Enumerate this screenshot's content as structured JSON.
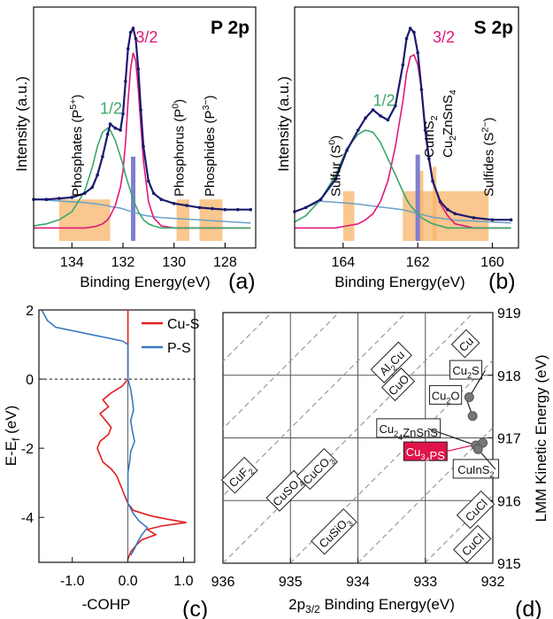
{
  "chart_data": [
    {
      "panel": "(a)",
      "type": "line",
      "title": "P 2p",
      "xlabel": "Binding Energy(eV)",
      "ylabel": "Intensity (a.u.)",
      "xlim": [
        135.5,
        126.8
      ],
      "x_ticks": [
        134,
        132,
        130,
        128
      ],
      "peak_labels": [
        {
          "text": "3/2",
          "x": 131.5,
          "y": 0.93,
          "color": "#e0197a"
        },
        {
          "text": "1/2",
          "x": 132.9,
          "y": 0.58,
          "color": "#3aa86b"
        }
      ],
      "region_labels": [
        {
          "text": "Phosphates (P",
          "sup": "5+",
          "tail": ")",
          "x": 133.8
        },
        {
          "text": "Phosphorus (P",
          "sup": "0",
          "tail": ")",
          "x": 129.8
        },
        {
          "text": "Phosphides (P",
          "sup": "3−",
          "tail": ")",
          "x": 128.6
        }
      ],
      "bands": [
        {
          "x0": 134.5,
          "x1": 132.5,
          "h": 0.16
        },
        {
          "x0": 129.9,
          "x1": 129.4,
          "h": 0.16
        },
        {
          "x0": 129.0,
          "x1": 128.1,
          "h": 0.16
        }
      ],
      "reference_line": {
        "x": 131.6,
        "h": 0.37
      },
      "series": [
        {
          "role": "data",
          "color": "#1a1a6e",
          "style": "line+markers"
        },
        {
          "role": "fit",
          "color": "#e0197a"
        },
        {
          "role": "fit",
          "color": "#3aa86b"
        },
        {
          "role": "background",
          "color": "#6aa0c8"
        }
      ],
      "x": [
        135.5,
        135.0,
        134.5,
        134.0,
        133.5,
        133.2,
        133.0,
        132.8,
        132.6,
        132.5,
        132.3,
        132.1,
        132.0,
        131.9,
        131.8,
        131.7,
        131.6,
        131.5,
        131.4,
        131.3,
        131.2,
        131.0,
        130.8,
        130.5,
        130.0,
        129.5,
        129.0,
        128.5,
        128.0,
        127.5,
        127.0
      ],
      "data_y": [
        0.16,
        0.16,
        0.165,
        0.17,
        0.19,
        0.22,
        0.28,
        0.37,
        0.48,
        0.53,
        0.51,
        0.5,
        0.58,
        0.74,
        0.9,
        0.98,
        1.0,
        0.95,
        0.8,
        0.6,
        0.42,
        0.25,
        0.19,
        0.16,
        0.14,
        0.13,
        0.12,
        0.115,
        0.11,
        0.11,
        0.11
      ],
      "fit_32": [
        0.0,
        0.0,
        0.0,
        0.0,
        0.0,
        0.005,
        0.01,
        0.02,
        0.04,
        0.06,
        0.11,
        0.2,
        0.28,
        0.42,
        0.62,
        0.78,
        0.86,
        0.82,
        0.68,
        0.5,
        0.33,
        0.13,
        0.05,
        0.01,
        0.0,
        0.0,
        0.0,
        0.0,
        0.0,
        0.0,
        0.0
      ],
      "fit_12": [
        0.01,
        0.02,
        0.04,
        0.08,
        0.18,
        0.3,
        0.4,
        0.47,
        0.49,
        0.48,
        0.43,
        0.35,
        0.31,
        0.26,
        0.22,
        0.18,
        0.14,
        0.11,
        0.08,
        0.06,
        0.04,
        0.02,
        0.01,
        0.0,
        0.0,
        0.0,
        0.0,
        0.0,
        0.0,
        0.0,
        0.0
      ]
    },
    {
      "panel": "(b)",
      "type": "line",
      "title": "S 2p",
      "xlabel": "Binding Energy(eV)",
      "ylabel": "Intensity (a.u.)",
      "xlim": [
        165.3,
        159.3
      ],
      "x_ticks": [
        164,
        162,
        160
      ],
      "peak_labels": [
        {
          "text": "3/2",
          "x": 161.6,
          "y": 0.93,
          "color": "#e0197a"
        },
        {
          "text": "1/2",
          "x": 163.2,
          "y": 0.62,
          "color": "#3aa86b"
        }
      ],
      "region_labels": [
        {
          "text": "Sulfur (S",
          "sup": "0",
          "tail": ")",
          "x": 164.2
        },
        {
          "text": "CuInS",
          "sub": "2",
          "tail": "",
          "x": 161.7
        },
        {
          "text": "Cu",
          "sub": "2",
          "mid": "ZnSnS",
          "sub2": "4",
          "tail": "",
          "x": 161.2
        },
        {
          "text": "Sulfides (S",
          "sup": "2−",
          "tail": ")",
          "x": 160.1
        }
      ],
      "bands": [
        {
          "x0": 164.0,
          "x1": 163.7,
          "h": 0.2
        },
        {
          "x0": 162.4,
          "x1": 160.1,
          "h": 0.2
        },
        {
          "x0": 161.95,
          "x1": 161.85,
          "h": 0.3
        },
        {
          "x0": 161.6,
          "x1": 161.5,
          "h": 0.32
        }
      ],
      "reference_line": {
        "x": 162.0,
        "h": 0.38
      },
      "series": [
        {
          "role": "data",
          "color": "#1a1a6e",
          "style": "line+markers"
        },
        {
          "role": "fit",
          "color": "#e0197a"
        },
        {
          "role": "fit",
          "color": "#3aa86b"
        },
        {
          "role": "background",
          "color": "#6aa0c8"
        }
      ],
      "x": [
        165.3,
        165.0,
        164.6,
        164.2,
        163.9,
        163.6,
        163.4,
        163.2,
        163.0,
        162.8,
        162.6,
        162.4,
        162.3,
        162.2,
        162.1,
        162.0,
        161.9,
        161.8,
        161.7,
        161.6,
        161.4,
        161.2,
        161.0,
        160.5,
        160.0,
        159.5
      ],
      "data_y": [
        0.1,
        0.12,
        0.16,
        0.26,
        0.4,
        0.5,
        0.56,
        0.6,
        0.57,
        0.55,
        0.62,
        0.82,
        0.95,
        1.0,
        0.98,
        0.88,
        0.7,
        0.5,
        0.36,
        0.25,
        0.15,
        0.11,
        0.09,
        0.07,
        0.06,
        0.06
      ],
      "fit_32": [
        0.0,
        0.0,
        0.0,
        0.0,
        0.01,
        0.02,
        0.04,
        0.07,
        0.13,
        0.23,
        0.4,
        0.62,
        0.76,
        0.84,
        0.85,
        0.8,
        0.68,
        0.5,
        0.35,
        0.24,
        0.12,
        0.06,
        0.02,
        0.0,
        0.0,
        0.0
      ],
      "fit_12": [
        0.03,
        0.06,
        0.14,
        0.26,
        0.39,
        0.46,
        0.48,
        0.47,
        0.42,
        0.34,
        0.26,
        0.18,
        0.14,
        0.11,
        0.09,
        0.07,
        0.05,
        0.04,
        0.03,
        0.02,
        0.01,
        0.0,
        0.0,
        0.0,
        0.0,
        0.0
      ]
    },
    {
      "panel": "(c)",
      "type": "line",
      "xlabel": "-COHP",
      "ylabel": "E-E",
      "ylabel_sub": "f",
      "ylabel_tail": " (eV)",
      "xlim": [
        -1.6,
        1.2
      ],
      "ylim": [
        -5.3,
        2.0
      ],
      "x_ticks": [
        -1.0,
        0.0,
        1.0
      ],
      "x_tick_labels": [
        "-1.0",
        "0.0",
        "1.0"
      ],
      "y_ticks": [
        2,
        0,
        -2,
        -4
      ],
      "fermi_level": 0,
      "series": [
        {
          "name": "Cu-S",
          "color": "#e02020",
          "y": [
            2.0,
            1.5,
            1.0,
            0.5,
            0.2,
            0.0,
            -0.2,
            -0.4,
            -0.6,
            -0.8,
            -1.0,
            -1.2,
            -1.4,
            -1.6,
            -1.8,
            -2.0,
            -2.2,
            -2.4,
            -2.6,
            -2.8,
            -3.0,
            -3.2,
            -3.4,
            -3.6,
            -3.8,
            -3.95,
            -4.05,
            -4.15,
            -4.25,
            -4.35,
            -4.5,
            -4.65,
            -4.8,
            -5.0,
            -5.2
          ],
          "x": [
            0.0,
            0.0,
            0.0,
            0.0,
            0.0,
            0.0,
            -0.1,
            -0.3,
            -0.45,
            -0.35,
            -0.5,
            -0.4,
            -0.3,
            -0.35,
            -0.5,
            -0.55,
            -0.5,
            -0.45,
            -0.3,
            -0.2,
            -0.15,
            -0.1,
            -0.05,
            0.0,
            0.1,
            0.4,
            0.7,
            1.05,
            0.6,
            0.35,
            0.5,
            0.25,
            0.15,
            0.05,
            0.0
          ]
        },
        {
          "name": "P-S",
          "color": "#3a78c0",
          "y": [
            2.0,
            1.85,
            1.7,
            1.5,
            1.3,
            1.1,
            1.0,
            0.8,
            0.5,
            0.2,
            0.0,
            -0.3,
            -0.6,
            -0.9,
            -1.2,
            -1.5,
            -1.8,
            -2.1,
            -2.4,
            -2.7,
            -3.0,
            -3.3,
            -3.6,
            -3.9,
            -4.1,
            -4.3,
            -4.5,
            -4.7,
            -4.9,
            -5.1
          ],
          "x": [
            -1.55,
            -1.5,
            -1.45,
            -1.3,
            -0.7,
            -0.1,
            0.0,
            0.0,
            0.0,
            0.0,
            0.0,
            0.05,
            0.08,
            0.1,
            0.05,
            0.08,
            0.12,
            0.05,
            0.03,
            0.0,
            0.0,
            0.0,
            0.0,
            0.1,
            0.2,
            0.35,
            0.25,
            0.18,
            0.12,
            0.05
          ]
        }
      ]
    },
    {
      "panel": "(d)",
      "type": "scatter",
      "xlabel": "2p",
      "xlabel_sub": "3/2",
      "xlabel_tail": " Binding Energy(eV)",
      "ylabel": "LMM Kinetic Energy (eV)",
      "xlim": [
        936.0,
        932.0
      ],
      "ylim": [
        915.0,
        919.0
      ],
      "x_ticks": [
        936,
        935,
        934,
        933,
        932
      ],
      "y_ticks": [
        919,
        918,
        917,
        916,
        915
      ],
      "points": [
        {
          "x": 932.35,
          "y": 917.65
        },
        {
          "x": 932.3,
          "y": 917.35
        },
        {
          "x": 932.25,
          "y": 916.88
        },
        {
          "x": 932.15,
          "y": 916.92
        },
        {
          "x": 932.22,
          "y": 916.82
        }
      ],
      "labels": [
        {
          "text": "Cu",
          "x": 932.4,
          "y": 918.5,
          "rotated": true
        },
        {
          "text": "Al",
          "sub": "2",
          "tail": "Cu",
          "x": 933.5,
          "y": 918.2,
          "rotated": true
        },
        {
          "text": "CuO",
          "x": 933.4,
          "y": 917.85,
          "rotated": true
        },
        {
          "text": "Cu",
          "sub": "2",
          "tail": "S",
          "x": 932.4,
          "y": 918.08,
          "rotated": false
        },
        {
          "text": "Cu",
          "sub": "2",
          "tail": "O",
          "x": 932.7,
          "y": 917.68,
          "rotated": false
        },
        {
          "text": "Cu",
          "sub": "2",
          "tail": "ZnSnS",
          "sub2": "4",
          "x": 933.25,
          "y": 917.15,
          "rotated": false
        },
        {
          "text": "Cu",
          "sub": "3",
          "tail": "PS",
          "sub2": "4",
          "x": 933.0,
          "y": 916.78,
          "rotated": false,
          "highlight": true
        },
        {
          "text": "CuInS",
          "sub": "2",
          "tail": "",
          "x": 932.25,
          "y": 916.5,
          "rotated": false
        },
        {
          "text": "CuF",
          "sub": "2",
          "tail": "",
          "x": 935.75,
          "y": 916.4,
          "rotated": true
        },
        {
          "text": "CuSO",
          "sub": "4",
          "tail": "",
          "x": 935.05,
          "y": 916.15,
          "rotated": true
        },
        {
          "text": "CuCO",
          "sub": "3",
          "tail": "",
          "x": 934.6,
          "y": 916.5,
          "rotated": true
        },
        {
          "text": "CuSiO",
          "sub": "3",
          "tail": "",
          "x": 934.35,
          "y": 915.5,
          "rotated": true
        },
        {
          "text": "CuCl",
          "x": 932.25,
          "y": 915.85,
          "rotated": true
        },
        {
          "text": "CuCl",
          "x": 932.3,
          "y": 915.3,
          "rotated": true
        }
      ],
      "highlight_color": "#e0134a"
    }
  ],
  "panel_labels": [
    "(a)",
    "(b)",
    "(c)",
    "(d)"
  ]
}
